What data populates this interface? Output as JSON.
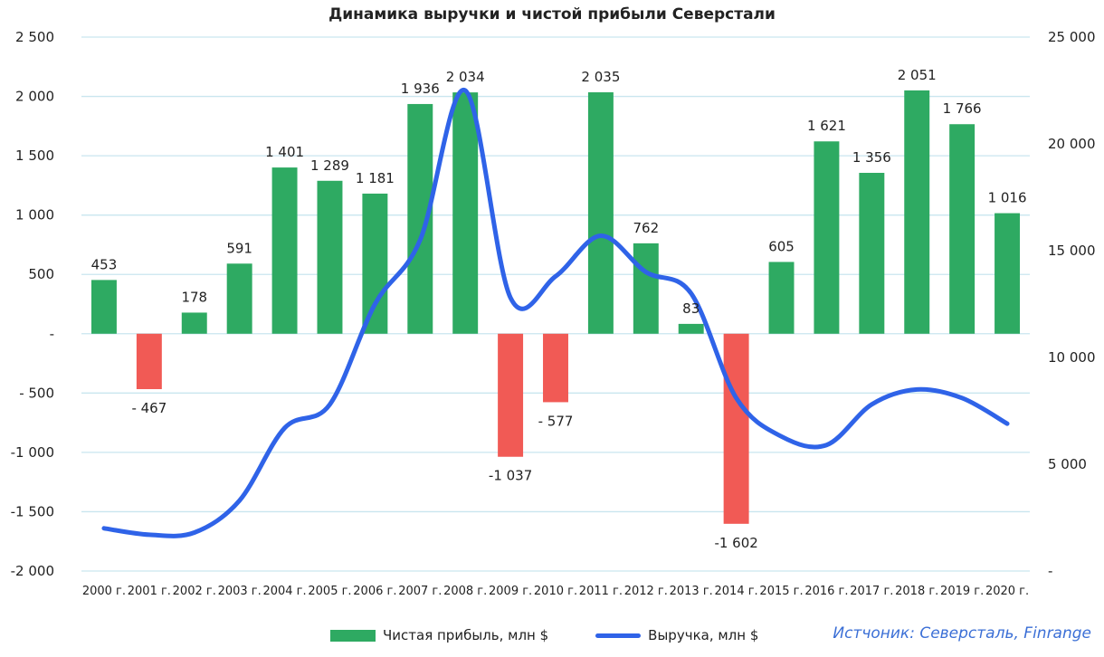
{
  "chart_data": {
    "type": "bar",
    "title": "Динамика выручки и чистой прибыли Северстали",
    "categories": [
      "2000 г.",
      "2001 г.",
      "2002 г.",
      "2003 г.",
      "2004 г.",
      "2005 г.",
      "2006 г.",
      "2007 г.",
      "2008 г.",
      "2009 г.",
      "2010 г.",
      "2011 г.",
      "2012 г.",
      "2013 г.",
      "2014 г.",
      "2015 г.",
      "2016 г.",
      "2017 г.",
      "2018 г.",
      "2019 г.",
      "2020 г."
    ],
    "series": [
      {
        "name": "Чистая прибыль, млн $",
        "type": "bar",
        "axis": "left",
        "values": [
          453,
          -467,
          178,
          591,
          1401,
          1289,
          1181,
          1936,
          2034,
          -1037,
          -577,
          2035,
          762,
          83,
          -1602,
          605,
          1621,
          1356,
          2051,
          1766,
          1016
        ],
        "labels": [
          "453",
          "- 467",
          "178",
          "591",
          "1 401",
          "1 289",
          "1 181",
          "1 936",
          "2 034",
          "-1 037",
          "- 577",
          "2 035",
          "762",
          "83",
          "-1 602",
          "605",
          "1 621",
          "1 356",
          "2 051",
          "1 766",
          "1 016"
        ]
      },
      {
        "name": "Выручка, млн $",
        "type": "line",
        "axis": "right",
        "values": [
          2000,
          1700,
          1800,
          3300,
          6700,
          7800,
          12500,
          15500,
          22500,
          12800,
          13800,
          15700,
          14000,
          13000,
          8100,
          6300,
          5900,
          7800,
          8500,
          8100,
          6900
        ]
      }
    ],
    "y_left": {
      "ylim": [
        -2000,
        2500
      ],
      "ticks": [
        2500,
        2000,
        1500,
        1000,
        500,
        0,
        -500,
        -1000,
        -1500,
        -2000
      ],
      "tick_labels": [
        "2 500",
        "2 000",
        "1 500",
        "1 000",
        "500",
        "-",
        "- 500",
        "-1 000",
        "-1 500",
        "-2 000"
      ]
    },
    "y_right": {
      "ylim": [
        0,
        25000
      ],
      "ticks": [
        25000,
        20000,
        15000,
        10000,
        5000,
        0
      ],
      "tick_labels": [
        "25 000",
        "20 000",
        "15 000",
        "10 000",
        "5 000",
        "-"
      ]
    },
    "grid": true,
    "legend_position": "bottom",
    "colors": {
      "positive_bar": "#2eaa62",
      "negative_bar": "#f15a55",
      "line": "#2f63e8",
      "grid": "#c9e6ef"
    }
  },
  "source_text": "Истчоник: Северсталь, Finrange"
}
